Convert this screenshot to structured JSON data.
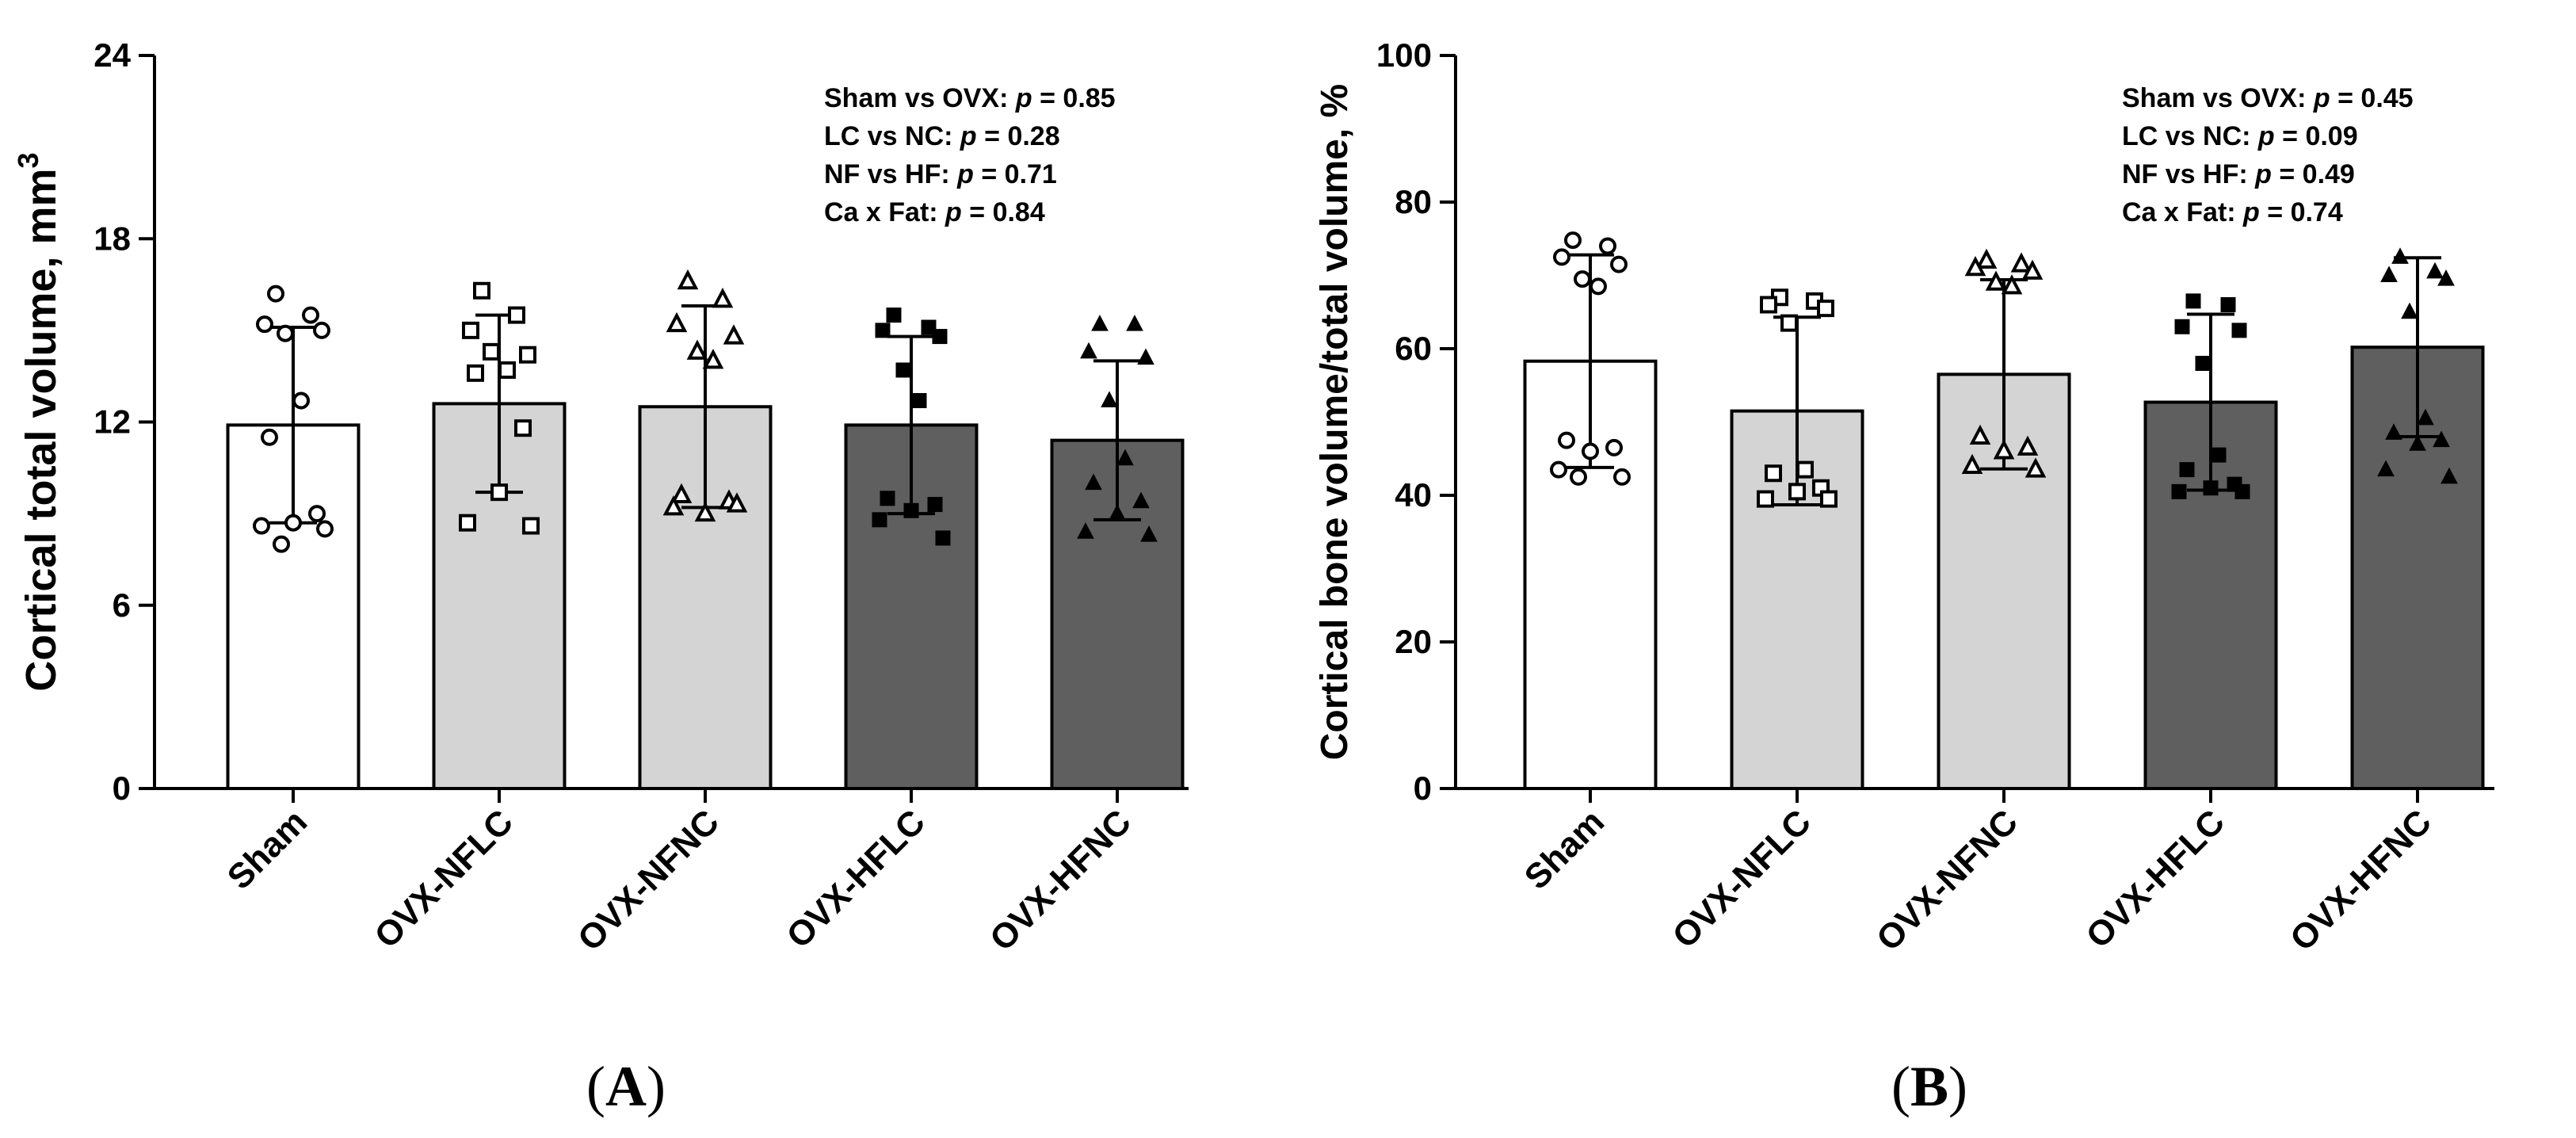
{
  "chart_data": [
    {
      "type": "bar",
      "panel": "(A)",
      "ylabel": "Cortical total volume, mm",
      "ylabel_superscript": "3",
      "ylim": [
        0,
        24
      ],
      "yticks": [
        0,
        6,
        12,
        18,
        24
      ],
      "categories": [
        "Sham",
        "OVX-NFLC",
        "OVX-NFNC",
        "OVX-HFLC",
        "OVX-HFNC"
      ],
      "means": [
        11.9,
        12.6,
        12.5,
        11.9,
        11.4
      ],
      "sd": [
        3.2,
        2.9,
        3.3,
        2.9,
        2.6
      ],
      "points": [
        [
          16.2,
          15.5,
          15.2,
          15.0,
          14.9,
          12.7,
          11.5,
          9.0,
          8.7,
          8.6,
          8.5,
          8.0
        ],
        [
          16.3,
          15.5,
          15.0,
          14.2,
          14.3,
          13.7,
          13.6,
          11.8,
          9.7,
          8.7,
          8.6
        ],
        [
          16.6,
          16.0,
          15.2,
          14.8,
          14.3,
          14.0,
          9.6,
          9.4,
          9.0,
          9.2,
          9.3
        ],
        [
          15.5,
          15.1,
          15.0,
          14.8,
          13.7,
          12.7,
          9.5,
          9.3,
          9.1,
          8.8,
          8.2
        ],
        [
          15.2,
          15.2,
          14.3,
          14.1,
          12.7,
          10.8,
          10.0,
          9.4,
          9.0,
          8.4,
          8.3
        ]
      ],
      "bar_colors": [
        "#ffffff",
        "#d4d4d4",
        "#d4d4d4",
        "#5f5f5f",
        "#5f5f5f"
      ],
      "markers": [
        "circle-open",
        "square-open",
        "triangle-open",
        "square-filled",
        "triangle-filled"
      ],
      "annotations": [
        {
          "label": "Sham vs OVX: ",
          "p": "p",
          "value": " = 0.85"
        },
        {
          "label": "LC vs NC: ",
          "p": "p",
          "value": " = 0.28"
        },
        {
          "label": "NF vs HF: ",
          "p": "p",
          "value": " = 0.71"
        },
        {
          "label": "Ca x Fat: ",
          "p": "p",
          "value": " = 0.84"
        }
      ]
    },
    {
      "type": "bar",
      "panel": "(B)",
      "ylabel": "Cortical bone volume/total volume, %",
      "ylabel_superscript": "",
      "ylim": [
        0,
        100
      ],
      "yticks": [
        0,
        20,
        40,
        60,
        80,
        100
      ],
      "categories": [
        "Sham",
        "OVX-NFLC",
        "OVX-NFNC",
        "OVX-HFLC",
        "OVX-HFNC"
      ],
      "means": [
        58.3,
        51.5,
        56.5,
        52.7,
        60.2
      ],
      "sd": [
        14.5,
        12.8,
        12.9,
        12.0,
        12.2
      ],
      "points": [
        [
          74.8,
          74.0,
          72.5,
          71.5,
          69.5,
          68.5,
          47.5,
          46.5,
          46.0,
          43.5,
          42.5,
          42.5
        ],
        [
          67.0,
          66.5,
          66.0,
          65.5,
          63.5,
          43.5,
          43.0,
          41.0,
          40.5,
          39.5,
          39.5
        ],
        [
          72.0,
          71.5,
          71.0,
          70.5,
          69.0,
          68.5,
          48.0,
          46.5,
          46.0,
          44.0,
          43.5
        ],
        [
          66.5,
          66.0,
          63.0,
          62.5,
          58.0,
          45.5,
          43.5,
          41.5,
          41.0,
          40.5,
          40.5
        ],
        [
          72.5,
          70.5,
          70.0,
          69.5,
          65.0,
          50.5,
          48.5,
          47.5,
          47.0,
          43.5,
          42.5
        ]
      ],
      "bar_colors": [
        "#ffffff",
        "#d4d4d4",
        "#d4d4d4",
        "#5f5f5f",
        "#5f5f5f"
      ],
      "markers": [
        "circle-open",
        "square-open",
        "triangle-open",
        "square-filled",
        "triangle-filled"
      ],
      "annotations": [
        {
          "label": "Sham vs OVX: ",
          "p": "p",
          "value": " = 0.45"
        },
        {
          "label": "LC vs NC: ",
          "p": "p",
          "value": " = 0.09"
        },
        {
          "label": "NF vs HF: ",
          "p": "p",
          "value": " = 0.49"
        },
        {
          "label": "Ca x Fat: ",
          "p": "p",
          "value": " = 0.74"
        }
      ]
    }
  ]
}
